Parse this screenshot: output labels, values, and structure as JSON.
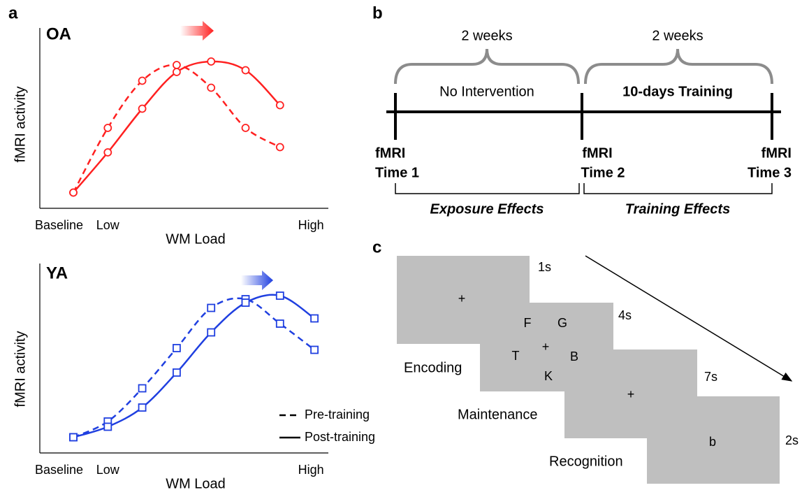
{
  "panels": {
    "a": "a",
    "b": "b",
    "c": "c"
  },
  "chart_data": [
    {
      "type": "line",
      "title": "OA",
      "title_color": "#ff2020",
      "xlabel": "WM Load",
      "ylabel": "fMRI activity",
      "categories": [
        "Baseline",
        "Low",
        null,
        null,
        null,
        null,
        null,
        "High"
      ],
      "ylim": [
        0,
        100
      ],
      "marker": "circle",
      "series": [
        {
          "color": "#ff2020",
          "line_style": "dashed",
          "values": [
            9,
            46,
            73,
            82,
            69,
            46,
            35,
            null
          ]
        },
        {
          "color": "#ff2020",
          "line_style": "solid",
          "values": [
            9,
            32,
            57,
            78,
            84,
            79,
            59,
            null
          ]
        }
      ]
    },
    {
      "type": "line",
      "title": "YA",
      "title_color": "#1f3fe0",
      "xlabel": "WM Load",
      "ylabel": "fMRI activity",
      "categories": [
        "Baseline",
        "Low",
        null,
        null,
        null,
        null,
        null,
        "High"
      ],
      "ylim": [
        0,
        100
      ],
      "marker": "square",
      "legend": "lower right",
      "series": [
        {
          "name": "Pre-training",
          "color": "#1f3fe0",
          "line_style": "dashed",
          "values": [
            9,
            18,
            37,
            60,
            83,
            88,
            74,
            59
          ]
        },
        {
          "name": "Post-training",
          "color": "#1f3fe0",
          "line_style": "solid",
          "values": [
            9,
            15,
            26,
            46,
            69,
            86,
            90,
            77
          ]
        }
      ]
    }
  ],
  "timeline": {
    "durations": [
      "2 weeks",
      "2 weeks"
    ],
    "phases": [
      "No Intervention",
      "10-days Training"
    ],
    "timepoints": [
      [
        "fMRI",
        "Time 1"
      ],
      [
        "fMRI",
        "Time 2"
      ],
      [
        "fMRI",
        "Time 3"
      ]
    ],
    "effects": [
      "Exposure Effects",
      "Training Effects"
    ]
  },
  "task": {
    "durations": [
      "1s",
      "4s",
      "7s",
      "2s"
    ],
    "fixation_1": "+",
    "letters": [
      "F",
      "G",
      "T",
      "+",
      "B",
      "K"
    ],
    "fixation_2": "+",
    "probe": "b",
    "stages": [
      "Encoding",
      "Maintenance",
      "Recognition"
    ]
  }
}
